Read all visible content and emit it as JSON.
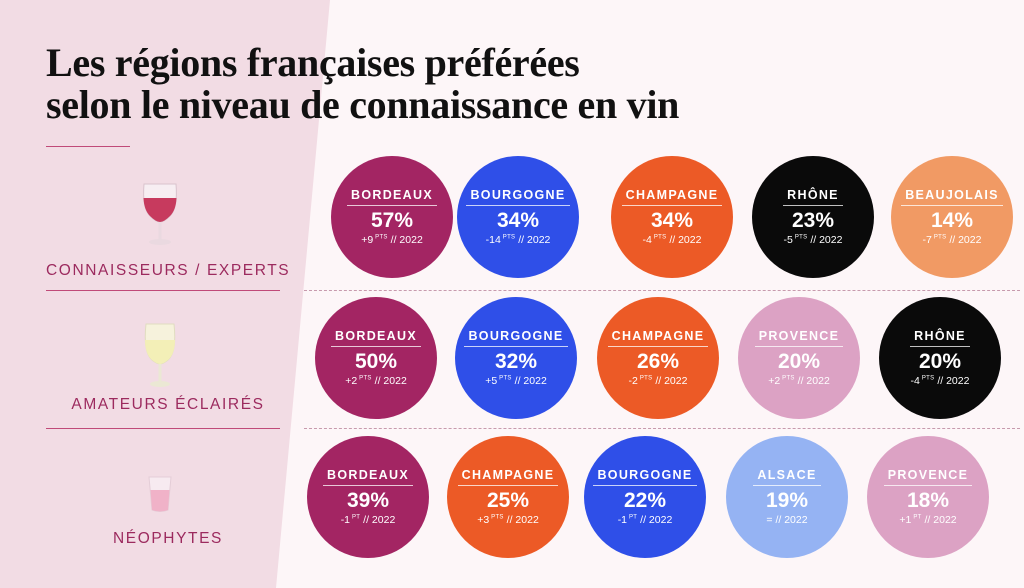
{
  "title_lines": [
    "Les régions françaises préférées",
    "selon le niveau de connaissance en vin"
  ],
  "colors": {
    "BORDEAUX": "#a32563",
    "BOURGOGNE": "#2f4fe8",
    "CHAMPAGNE": "#ec5a26",
    "RHÔNE": "#0a0a0a",
    "BEAUJOLAIS": "#f19a64",
    "PROVENCE": "#dca2c4",
    "ALSACE": "#95b3f3"
  },
  "chart_data": {
    "type": "table",
    "segments": [
      {
        "label": "CONNAISSEURS / EXPERTS",
        "glass_icon": "red-wine-glass-icon",
        "items": [
          {
            "region": "BORDEAUX",
            "value": "57%",
            "change": "+9",
            "unit": "PTS",
            "ref": "// 2022"
          },
          {
            "region": "BOURGOGNE",
            "value": "34%",
            "change": "-14",
            "unit": "PTS",
            "ref": "// 2022"
          },
          {
            "region": "CHAMPAGNE",
            "value": "34%",
            "change": "-4",
            "unit": "PTS",
            "ref": "// 2022"
          },
          {
            "region": "RHÔNE",
            "value": "23%",
            "change": "-5",
            "unit": "PTS",
            "ref": "// 2022"
          },
          {
            "region": "BEAUJOLAIS",
            "value": "14%",
            "change": "-7",
            "unit": "PTS",
            "ref": "// 2022"
          }
        ]
      },
      {
        "label": "AMATEURS ÉCLAIRÉS",
        "glass_icon": "white-wine-glass-icon",
        "items": [
          {
            "region": "BORDEAUX",
            "value": "50%",
            "change": "+2",
            "unit": "PTS",
            "ref": "// 2022"
          },
          {
            "region": "BOURGOGNE",
            "value": "32%",
            "change": "+5",
            "unit": "PTS",
            "ref": "// 2022"
          },
          {
            "region": "CHAMPAGNE",
            "value": "26%",
            "change": "-2",
            "unit": "PTS",
            "ref": "// 2022"
          },
          {
            "region": "PROVENCE",
            "value": "20%",
            "change": "+2",
            "unit": "PTS",
            "ref": "// 2022"
          },
          {
            "region": "RHÔNE",
            "value": "20%",
            "change": "-4",
            "unit": "PTS",
            "ref": "// 2022"
          }
        ]
      },
      {
        "label": "NÉOPHYTES",
        "glass_icon": "rose-wine-tumbler-icon",
        "items": [
          {
            "region": "BORDEAUX",
            "value": "39%",
            "change": "-1",
            "unit": "PT",
            "ref": "// 2022"
          },
          {
            "region": "CHAMPAGNE",
            "value": "25%",
            "change": "+3",
            "unit": "PTS",
            "ref": "// 2022"
          },
          {
            "region": "BOURGOGNE",
            "value": "22%",
            "change": "-1",
            "unit": "PT",
            "ref": "// 2022"
          },
          {
            "region": "ALSACE",
            "value": "19%",
            "change": "=",
            "unit": "",
            "ref": "// 2022"
          },
          {
            "region": "PROVENCE",
            "value": "18%",
            "change": "+1",
            "unit": "PT",
            "ref": "// 2022"
          }
        ]
      }
    ]
  }
}
